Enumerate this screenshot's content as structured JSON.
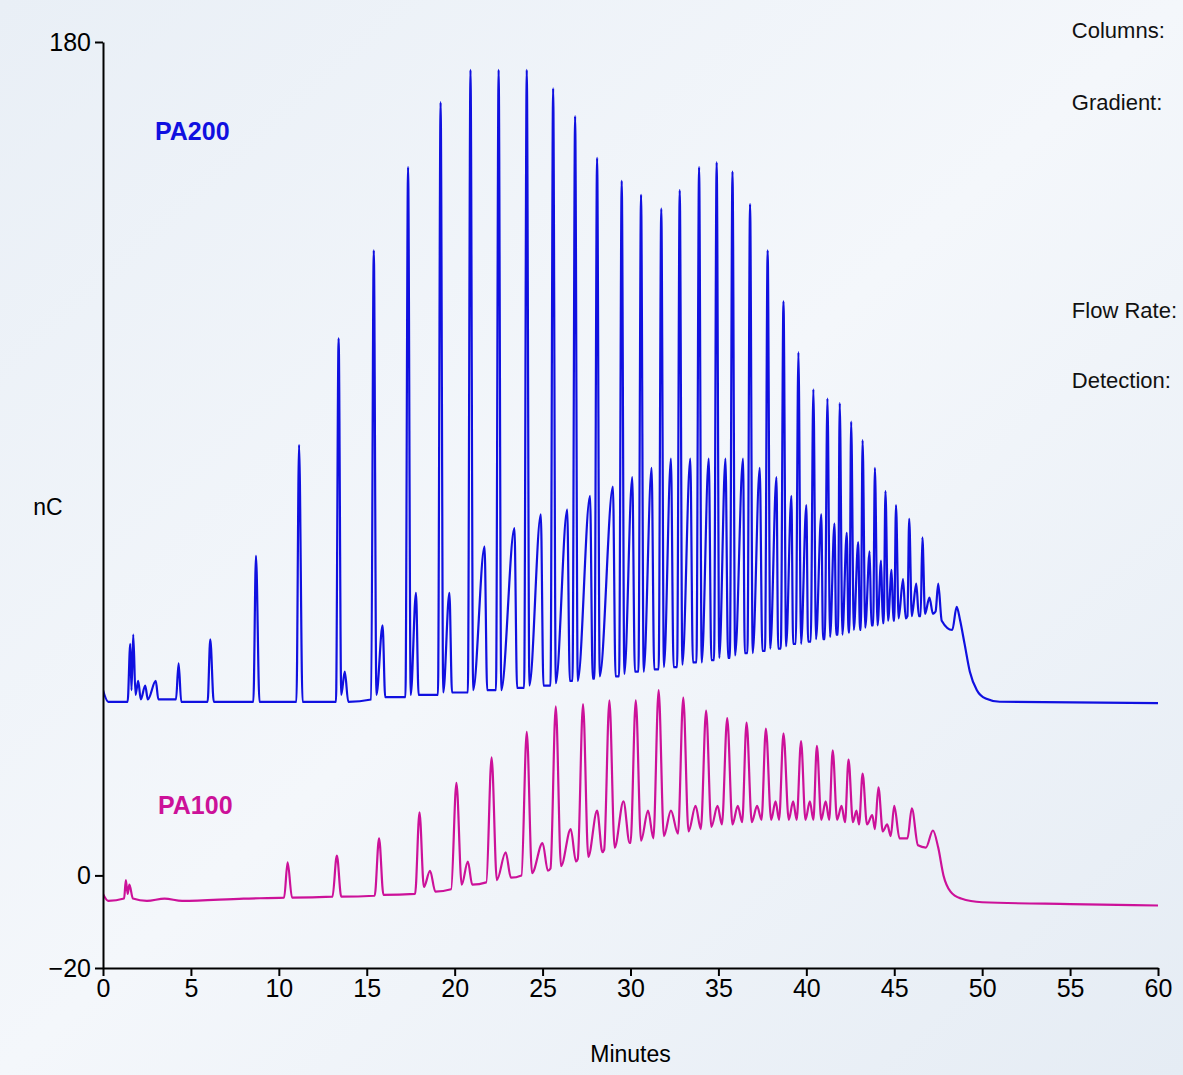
{
  "chart_data": {
    "type": "line",
    "x_label": "Minutes",
    "y_label": "nC",
    "annotations": [
      "Columns:",
      "Gradient:",
      "Flow Rate:",
      "Detection:"
    ],
    "xlim": [
      0,
      60
    ],
    "xticks": [
      0,
      5,
      10,
      15,
      20,
      25,
      30,
      35,
      40,
      45,
      50,
      55,
      60
    ],
    "ylim": [
      -20,
      180
    ],
    "yticks": [
      {
        "value": -20,
        "label": "−20"
      },
      0,
      180
    ],
    "series": [
      {
        "name": "PA200",
        "color": "#1010e0",
        "x": [
          0,
          0.3,
          1.4,
          1.55,
          1.62,
          1.72,
          1.85,
          2.0,
          2.15,
          2.4,
          2.55,
          3.0,
          3.15,
          4.15,
          4.3,
          4.45,
          5.95,
          6.1,
          6.3,
          8.55,
          8.7,
          8.9,
          11.0,
          11.15,
          11.35,
          13.25,
          13.4,
          13.55,
          13.75,
          13.95,
          15.25,
          15.4,
          15.55,
          15.9,
          16.05,
          17.2,
          17.35,
          17.5,
          17.8,
          17.95,
          19.05,
          19.2,
          19.35,
          19.7,
          19.85,
          20.75,
          20.9,
          21.05,
          21.7,
          21.85,
          22.35,
          22.5,
          22.65,
          23.4,
          23.55,
          23.95,
          24.1,
          24.25,
          24.9,
          25.05,
          25.45,
          25.6,
          25.75,
          26.4,
          26.55,
          26.7,
          26.85,
          27.0,
          27.7,
          27.85,
          27.95,
          28.1,
          28.25,
          29.0,
          29.15,
          29.35,
          29.5,
          29.65,
          30.1,
          30.25,
          30.45,
          30.6,
          30.75,
          31.2,
          31.35,
          31.6,
          31.75,
          31.9,
          32.3,
          32.45,
          32.65,
          32.8,
          32.95,
          33.4,
          33.55,
          33.75,
          33.9,
          34.05,
          34.45,
          34.6,
          34.75,
          34.9,
          35.05,
          35.4,
          35.55,
          35.65,
          35.8,
          35.95,
          36.4,
          36.5,
          36.65,
          36.8,
          36.95,
          37.35,
          37.5,
          37.65,
          37.8,
          37.95,
          38.3,
          38.4,
          38.55,
          38.7,
          38.85,
          39.15,
          39.25,
          39.4,
          39.55,
          39.7,
          40.0,
          40.1,
          40.25,
          40.4,
          40.55,
          40.85,
          40.95,
          41.05,
          41.2,
          41.35,
          41.6,
          41.7,
          41.8,
          41.9,
          42.05,
          42.3,
          42.4,
          42.45,
          42.55,
          42.7,
          42.95,
          43.05,
          43.1,
          43.2,
          43.35,
          43.6,
          43.7,
          43.8,
          43.9,
          44.05,
          44.25,
          44.35,
          44.4,
          44.5,
          44.65,
          44.85,
          44.95,
          45.0,
          45.1,
          45.25,
          45.5,
          45.65,
          45.75,
          45.85,
          46.0,
          46.25,
          46.4,
          46.5,
          46.6,
          46.75,
          47.0,
          47.2,
          47.35,
          47.5,
          47.7,
          48.3,
          48.55,
          48.75,
          49.0,
          49.3,
          49.7,
          50.2,
          51,
          60
        ],
        "values": [
          40,
          37.5,
          37.5,
          50,
          40,
          52,
          39,
          42,
          38,
          41,
          38,
          42,
          38,
          38,
          45.8,
          37.5,
          37.5,
          51,
          37.5,
          37.5,
          69,
          37.5,
          37.5,
          93,
          37.5,
          37.5,
          116,
          39,
          44,
          37.5,
          38,
          135,
          39,
          54,
          38.5,
          38.5,
          153,
          39,
          61,
          39,
          39,
          167,
          39.5,
          61,
          39.5,
          39.5,
          174,
          40,
          71,
          40,
          40,
          174,
          40,
          75,
          40.5,
          40.5,
          174,
          41,
          78,
          41,
          41,
          170,
          41.5,
          79,
          42,
          42,
          164,
          42,
          82,
          42.5,
          42.5,
          155,
          43,
          84,
          43,
          43,
          150,
          43.5,
          86,
          44,
          44,
          147,
          44,
          88,
          44.5,
          44.5,
          144,
          45,
          90,
          45,
          45,
          148,
          45.5,
          90,
          46,
          46,
          153,
          46,
          90,
          46.5,
          46.5,
          154,
          47,
          90,
          47,
          47,
          152,
          47.5,
          90,
          48,
          48,
          145,
          48,
          88,
          48.5,
          48.5,
          135,
          49,
          86,
          49,
          49,
          124,
          49.5,
          82,
          50,
          50,
          113,
          50,
          80,
          50.5,
          50.5,
          105,
          51,
          78,
          51,
          51,
          103,
          51.5,
          76,
          52,
          52,
          102,
          52,
          74,
          52.5,
          52.5,
          98,
          53,
          72,
          53,
          53,
          94,
          53.5,
          70,
          54,
          54,
          88,
          54,
          68,
          54.5,
          54.5,
          83,
          55,
          66,
          55,
          55,
          80,
          55.5,
          64,
          55.5,
          56,
          77,
          56,
          63,
          56,
          56,
          73,
          56.5,
          60,
          56.5,
          57,
          63,
          55,
          53,
          58,
          55,
          50,
          44,
          40,
          38.2,
          37.5,
          37.2
        ]
      },
      {
        "name": "PA100",
        "color": "#cc1199",
        "x": [
          0,
          0.3,
          1.2,
          1.3,
          1.4,
          1.5,
          1.7,
          2.5,
          3.5,
          4.5,
          8,
          10.3,
          10.5,
          10.75,
          13.05,
          13.3,
          13.55,
          15.45,
          15.7,
          15.95,
          17.75,
          18.0,
          18.25,
          18.6,
          18.9,
          19.8,
          20.1,
          20.4,
          20.75,
          21.0,
          21.8,
          22.1,
          22.4,
          22.9,
          23.2,
          23.8,
          24.1,
          24.4,
          25.0,
          25.3,
          25.45,
          25.75,
          26.05,
          26.6,
          26.9,
          27.0,
          27.3,
          27.6,
          28.1,
          28.4,
          28.5,
          28.8,
          29.1,
          29.6,
          29.95,
          30.0,
          30.3,
          30.6,
          31.0,
          31.3,
          31.6,
          31.9,
          32.3,
          32.7,
          33.0,
          33.3,
          33.7,
          34.0,
          34.3,
          34.6,
          34.95,
          35.2,
          35.5,
          35.8,
          36.1,
          36.35,
          36.6,
          36.9,
          37.2,
          37.45,
          37.7,
          38.0,
          38.25,
          38.45,
          38.7,
          39.0,
          39.25,
          39.45,
          39.7,
          39.95,
          40.2,
          40.4,
          40.6,
          40.85,
          41.1,
          41.3,
          41.5,
          41.75,
          42.0,
          42.2,
          42.4,
          42.65,
          42.85,
          43.0,
          43.2,
          43.45,
          43.75,
          43.9,
          44.1,
          44.35,
          44.6,
          44.8,
          45.0,
          45.3,
          45.55,
          45.75,
          46.0,
          46.35,
          46.8,
          47.2,
          47.5,
          47.8,
          48.2,
          48.8,
          50,
          55,
          60
        ],
        "values": [
          -4,
          -5.5,
          -5,
          -1,
          -4,
          -2,
          -5,
          -5.5,
          -5,
          -5.5,
          -5,
          -4.8,
          2.8,
          -4.8,
          -4.6,
          4.3,
          -4.6,
          -4.4,
          8,
          -4.2,
          -4,
          13.6,
          -2.5,
          1,
          -3.5,
          -3,
          20,
          -2,
          3,
          -2,
          -1.5,
          25.5,
          -1,
          5,
          -0.5,
          0,
          31,
          0.5,
          7,
          1,
          1.5,
          36.5,
          2,
          10,
          3,
          3.5,
          37,
          4,
          14,
          5,
          5.5,
          37.8,
          6,
          16,
          7,
          7,
          37.8,
          7.5,
          14,
          8,
          40,
          8.5,
          14,
          9,
          38.4,
          9.5,
          15,
          10,
          35.6,
          10.5,
          15,
          11,
          34,
          11,
          15,
          11.5,
          33,
          11.5,
          15,
          12,
          31.7,
          12,
          16,
          12,
          30.7,
          12,
          16,
          12,
          29,
          12,
          16,
          12,
          28,
          12,
          16,
          12,
          27,
          12,
          15,
          11.5,
          25,
          11.5,
          14,
          11,
          22,
          11,
          13,
          10,
          19,
          9.5,
          11,
          8.5,
          15,
          8,
          8,
          8,
          14.5,
          6.5,
          6,
          9.7,
          6,
          0,
          -3.5,
          -5,
          -5.8,
          -6.2,
          -6.5
        ]
      }
    ]
  }
}
